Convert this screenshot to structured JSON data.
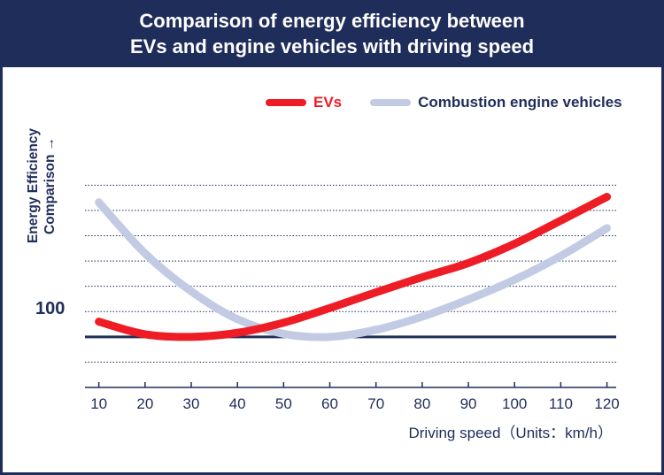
{
  "title": {
    "line1": "Comparison of energy efficiency between",
    "line2": "EVs and engine vehicles with driving speed"
  },
  "colors": {
    "navy": "#1f2d5a",
    "ev": "#ee1c25",
    "ice": "#c2cbe3",
    "grid": "#1f2d5a"
  },
  "chart_data": {
    "type": "line",
    "title": "Comparison of energy efficiency between EVs and engine vehicles with driving speed",
    "xlabel": "Driving speed（Units：km/h）",
    "ylabel": "Energy Efficiency Comparison",
    "ylabel_arrow": "→",
    "x": [
      10,
      20,
      30,
      40,
      50,
      60,
      70,
      80,
      90,
      100,
      110,
      120
    ],
    "x_ticks": [
      "10",
      "20",
      "30",
      "40",
      "50",
      "60",
      "70",
      "80",
      "90",
      "100",
      "110",
      "120"
    ],
    "y_ticks": [
      "100"
    ],
    "xlim": [
      7,
      122
    ],
    "ylim": [
      90,
      150
    ],
    "reference_line": 100,
    "grid": true,
    "gridline_values": [
      95,
      105,
      110,
      115,
      120,
      125,
      130
    ],
    "legend_position": "top-right",
    "series": [
      {
        "name": "EVs",
        "color": "#ee1c25",
        "x": [
          10,
          20,
          30,
          40,
          50,
          60,
          70,
          80,
          90,
          100,
          110,
          120
        ],
        "values": [
          103.0,
          100.5,
          100.0,
          100.8,
          102.8,
          105.7,
          108.8,
          111.8,
          114.6,
          118.4,
          123.0,
          127.7
        ]
      },
      {
        "name": "Combustion engine vehicles",
        "color": "#c2cbe3",
        "x": [
          10,
          20,
          30,
          40,
          50,
          60,
          70,
          80,
          90,
          100,
          110,
          120
        ],
        "values": [
          126.6,
          116.5,
          109.0,
          103.5,
          100.6,
          100.0,
          101.4,
          104.0,
          107.4,
          111.3,
          116.0,
          121.5
        ]
      }
    ]
  }
}
